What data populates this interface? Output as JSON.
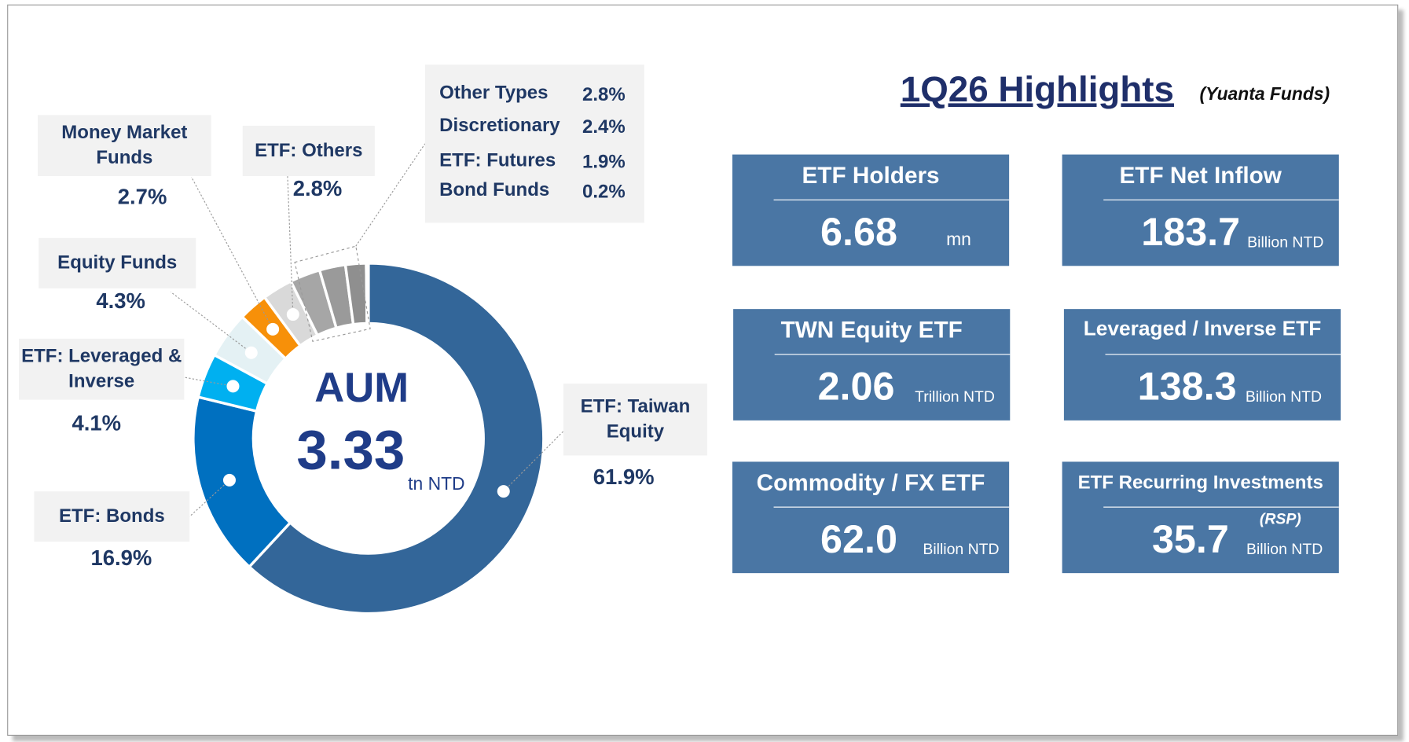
{
  "chart_data": {
    "type": "pie",
    "categories": [
      "ETF: Taiwan Equity",
      "ETF: Bonds",
      "ETF: Leveraged & Inverse",
      "Equity Funds",
      "Money Market Funds",
      "ETF: Others",
      "Other Types",
      "Discretionary",
      "ETF: Futures",
      "Bond Funds"
    ],
    "values": [
      61.9,
      16.9,
      4.1,
      4.3,
      2.7,
      2.8,
      2.8,
      2.4,
      1.9,
      0.2
    ],
    "value_labels": [
      "61.9%",
      "16.9%",
      "4.1%",
      "4.3%",
      "2.7%",
      "2.8%",
      "2.8%",
      "2.4%",
      "1.9%",
      "0.2%"
    ],
    "colors": [
      "#336699",
      "#0070c0",
      "#00b0f0",
      "#e4f1f4",
      "#f79009",
      "#d9d9d9",
      "#a6a6a6",
      "#9a9a9a",
      "#8f8f8f",
      "#a0a0a0"
    ],
    "center": {
      "title": "AUM",
      "value": "3.33",
      "unit": "tn NTD"
    }
  },
  "highlights": {
    "title": "1Q26 Highlights",
    "subtitle": "(Yuanta Funds)",
    "cards": [
      {
        "title": "ETF Holders",
        "value": "6.68",
        "unit": "mn"
      },
      {
        "title": "ETF Net Inflow",
        "value": "183.7",
        "unit": "Billion NTD"
      },
      {
        "title": "TWN Equity ETF",
        "value": "2.06",
        "unit": "Trillion  NTD"
      },
      {
        "title": "Leveraged / Inverse ETF",
        "value": "138.3",
        "unit": "Billion NTD"
      },
      {
        "title": "Commodity  / FX ETF",
        "value": "62.0",
        "unit": "Billion NTD"
      },
      {
        "title": "ETF Recurring Investments",
        "note": "(RSP)",
        "value": "35.7",
        "unit": "Billion NTD"
      }
    ]
  }
}
